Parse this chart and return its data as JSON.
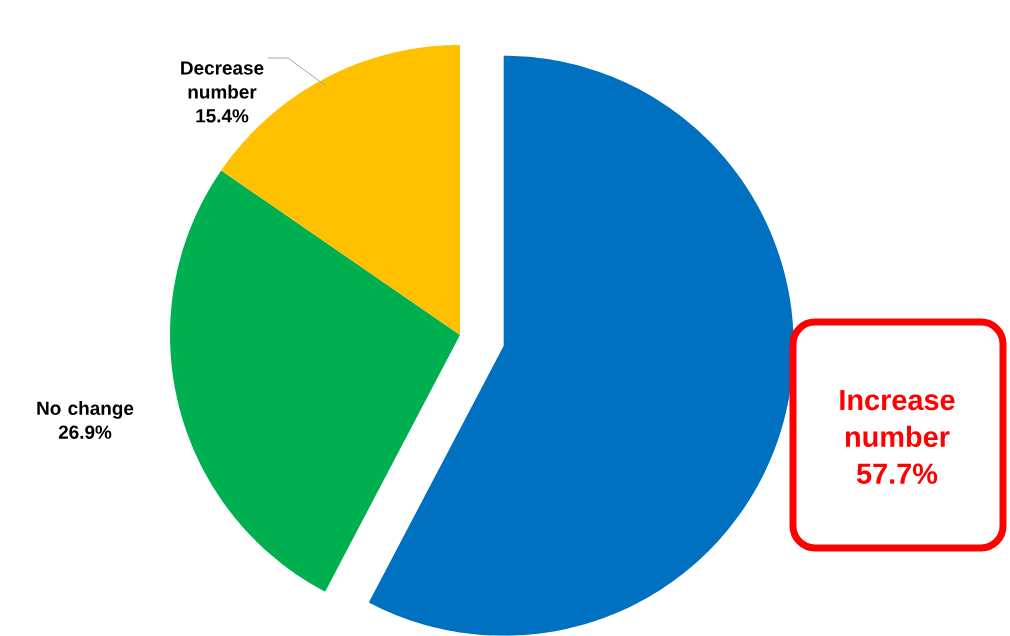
{
  "chart_data": {
    "type": "pie",
    "categories": [
      "Increase number",
      "No change",
      "Decrease number"
    ],
    "values": [
      57.7,
      26.9,
      15.4
    ],
    "colors": [
      "#0070c0",
      "#00b050",
      "#ffc000"
    ],
    "value_labels": [
      "57.7%",
      "26.9%",
      "15.4%"
    ]
  }
}
